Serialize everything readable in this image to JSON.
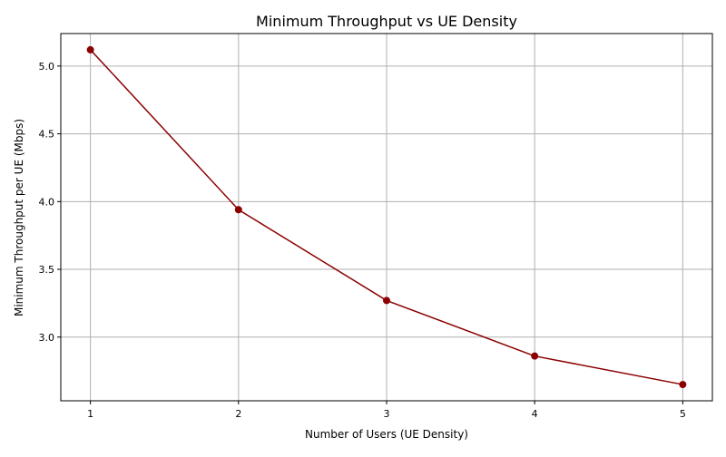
{
  "chart_data": {
    "type": "line",
    "title": "Minimum Throughput vs UE Density",
    "xlabel": "Number of Users (UE Density)",
    "ylabel": "Minimum Throughput per UE (Mbps)",
    "x": [
      1,
      2,
      3,
      4,
      5
    ],
    "series": [
      {
        "values": [
          5.12,
          3.94,
          3.27,
          2.86,
          2.65
        ],
        "color": "#8b0000",
        "marker": "circle"
      }
    ],
    "xticks": [
      "1",
      "2",
      "3",
      "4",
      "5"
    ],
    "yticks": [
      "3.0",
      "3.5",
      "4.0",
      "4.5",
      "5.0"
    ],
    "xlim": [
      0.8,
      5.2
    ],
    "ylim": [
      2.53,
      5.24
    ],
    "grid": true,
    "legend": "none"
  }
}
